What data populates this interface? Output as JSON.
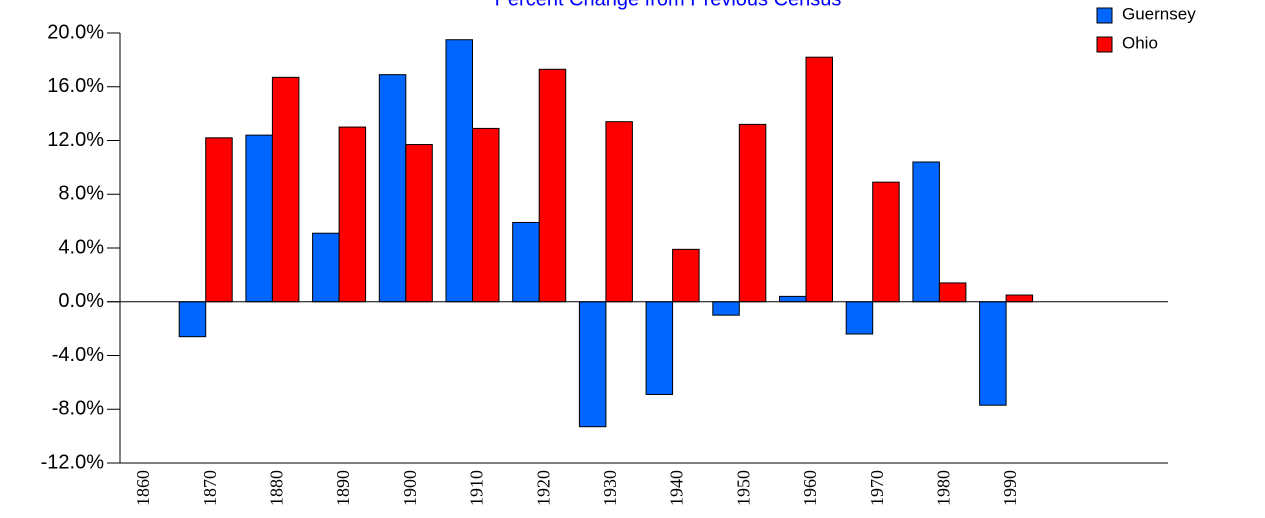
{
  "chart_data": {
    "type": "bar",
    "title": "Percent Change from Previous Census",
    "categories": [
      "1860",
      "1870",
      "1880",
      "1890",
      "1900",
      "1910",
      "1920",
      "1930",
      "1940",
      "1950",
      "1960",
      "1970",
      "1980",
      "1990"
    ],
    "series": [
      {
        "name": "Guernsey",
        "color": "#0066ff",
        "values": [
          null,
          -2.6,
          12.4,
          5.1,
          16.9,
          19.5,
          5.9,
          -9.3,
          -6.9,
          -1.0,
          0.4,
          -2.4,
          10.4,
          -7.7
        ]
      },
      {
        "name": "Ohio",
        "color": "#ff0000",
        "values": [
          null,
          12.2,
          16.7,
          13.0,
          11.7,
          12.9,
          17.3,
          13.4,
          3.9,
          13.2,
          18.2,
          8.9,
          1.4,
          0.5
        ]
      }
    ],
    "ylim": [
      -12,
      20
    ],
    "yticks": [
      {
        "value": -12,
        "label": "-12.0%"
      },
      {
        "value": -8,
        "label": "-8.0%"
      },
      {
        "value": -4,
        "label": "-4.0%"
      },
      {
        "value": 0,
        "label": "0.0%"
      },
      {
        "value": 4,
        "label": "4.0%"
      },
      {
        "value": 8,
        "label": "8.0%"
      },
      {
        "value": 12,
        "label": "12.0%"
      },
      {
        "value": 16,
        "label": "16.0%"
      },
      {
        "value": 20,
        "label": "20.0%"
      }
    ],
    "legend": "top-right"
  }
}
